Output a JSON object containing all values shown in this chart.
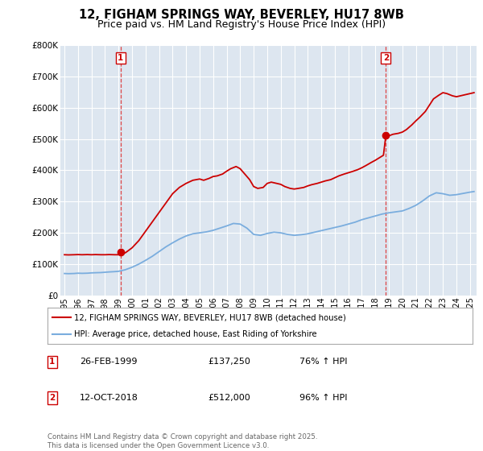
{
  "title": "12, FIGHAM SPRINGS WAY, BEVERLEY, HU17 8WB",
  "subtitle": "Price paid vs. HM Land Registry's House Price Index (HPI)",
  "ylim": [
    0,
    800000
  ],
  "xlim_start": 1994.7,
  "xlim_end": 2025.5,
  "yticks": [
    0,
    100000,
    200000,
    300000,
    400000,
    500000,
    600000,
    700000,
    800000
  ],
  "ytick_labels": [
    "£0",
    "£100K",
    "£200K",
    "£300K",
    "£400K",
    "£500K",
    "£600K",
    "£700K",
    "£800K"
  ],
  "xticks": [
    1995,
    1996,
    1997,
    1998,
    1999,
    2000,
    2001,
    2002,
    2003,
    2004,
    2005,
    2006,
    2007,
    2008,
    2009,
    2010,
    2011,
    2012,
    2013,
    2014,
    2015,
    2016,
    2017,
    2018,
    2019,
    2020,
    2021,
    2022,
    2023,
    2024,
    2025
  ],
  "xtick_labels": [
    "1995",
    "1996",
    "1997",
    "1998",
    "1999",
    "2000",
    "2001",
    "2002",
    "2003",
    "2004",
    "2005",
    "2006",
    "2007",
    "2008",
    "2009",
    "2010",
    "2011",
    "2012",
    "2013",
    "2014",
    "2015",
    "2016",
    "2017",
    "2018",
    "2019",
    "2020",
    "2021",
    "2022",
    "2023",
    "2024",
    "2025"
  ],
  "bg_color": "#dde6f0",
  "grid_color": "#ffffff",
  "red_line_color": "#cc0000",
  "blue_line_color": "#7aadde",
  "marker1_x": 1999.15,
  "marker1_y": 137250,
  "marker2_x": 2018.78,
  "marker2_y": 512000,
  "vline1_x": 1999.15,
  "vline2_x": 2018.78,
  "legend_label_red": "12, FIGHAM SPRINGS WAY, BEVERLEY, HU17 8WB (detached house)",
  "legend_label_blue": "HPI: Average price, detached house, East Riding of Yorkshire",
  "table_rows": [
    {
      "num": "1",
      "date": "26-FEB-1999",
      "price": "£137,250",
      "hpi": "76% ↑ HPI"
    },
    {
      "num": "2",
      "date": "12-OCT-2018",
      "price": "£512,000",
      "hpi": "96% ↑ HPI"
    }
  ],
  "footnote": "Contains HM Land Registry data © Crown copyright and database right 2025.\nThis data is licensed under the Open Government Licence v3.0.",
  "title_fontsize": 10.5,
  "subtitle_fontsize": 9,
  "red_pts": [
    [
      1995.0,
      130000
    ],
    [
      1995.3,
      129500
    ],
    [
      1995.7,
      130000
    ],
    [
      1996.0,
      130500
    ],
    [
      1996.3,
      130000
    ],
    [
      1996.7,
      130500
    ],
    [
      1997.0,
      130000
    ],
    [
      1997.3,
      130500
    ],
    [
      1997.7,
      130000
    ],
    [
      1998.0,
      130000
    ],
    [
      1998.3,
      130500
    ],
    [
      1998.7,
      130000
    ],
    [
      1999.0,
      130000
    ],
    [
      1999.15,
      137250
    ],
    [
      1999.5,
      136000
    ],
    [
      2000.0,
      152000
    ],
    [
      2000.5,
      175000
    ],
    [
      2001.0,
      205000
    ],
    [
      2001.5,
      235000
    ],
    [
      2002.0,
      265000
    ],
    [
      2002.5,
      295000
    ],
    [
      2003.0,
      325000
    ],
    [
      2003.5,
      345000
    ],
    [
      2004.0,
      358000
    ],
    [
      2004.5,
      368000
    ],
    [
      2005.0,
      372000
    ],
    [
      2005.3,
      368000
    ],
    [
      2005.7,
      374000
    ],
    [
      2006.0,
      380000
    ],
    [
      2006.3,
      382000
    ],
    [
      2006.7,
      388000
    ],
    [
      2007.0,
      397000
    ],
    [
      2007.3,
      405000
    ],
    [
      2007.7,
      412000
    ],
    [
      2008.0,
      405000
    ],
    [
      2008.3,
      390000
    ],
    [
      2008.7,
      370000
    ],
    [
      2009.0,
      348000
    ],
    [
      2009.3,
      342000
    ],
    [
      2009.7,
      345000
    ],
    [
      2010.0,
      358000
    ],
    [
      2010.3,
      362000
    ],
    [
      2010.7,
      358000
    ],
    [
      2011.0,
      355000
    ],
    [
      2011.3,
      348000
    ],
    [
      2011.7,
      342000
    ],
    [
      2012.0,
      340000
    ],
    [
      2012.3,
      342000
    ],
    [
      2012.7,
      345000
    ],
    [
      2013.0,
      350000
    ],
    [
      2013.3,
      354000
    ],
    [
      2013.7,
      358000
    ],
    [
      2014.0,
      362000
    ],
    [
      2014.3,
      366000
    ],
    [
      2014.7,
      370000
    ],
    [
      2015.0,
      376000
    ],
    [
      2015.3,
      382000
    ],
    [
      2015.7,
      388000
    ],
    [
      2016.0,
      392000
    ],
    [
      2016.3,
      396000
    ],
    [
      2016.7,
      402000
    ],
    [
      2017.0,
      408000
    ],
    [
      2017.3,
      415000
    ],
    [
      2017.7,
      425000
    ],
    [
      2018.0,
      432000
    ],
    [
      2018.3,
      440000
    ],
    [
      2018.6,
      448000
    ],
    [
      2018.78,
      512000
    ],
    [
      2019.0,
      510000
    ],
    [
      2019.3,
      515000
    ],
    [
      2019.7,
      518000
    ],
    [
      2020.0,
      522000
    ],
    [
      2020.3,
      530000
    ],
    [
      2020.7,
      545000
    ],
    [
      2021.0,
      558000
    ],
    [
      2021.3,
      570000
    ],
    [
      2021.7,
      588000
    ],
    [
      2022.0,
      608000
    ],
    [
      2022.3,
      628000
    ],
    [
      2022.7,
      640000
    ],
    [
      2023.0,
      648000
    ],
    [
      2023.3,
      645000
    ],
    [
      2023.7,
      638000
    ],
    [
      2024.0,
      635000
    ],
    [
      2024.3,
      638000
    ],
    [
      2024.7,
      642000
    ],
    [
      2025.0,
      645000
    ],
    [
      2025.3,
      648000
    ]
  ],
  "blue_pts": [
    [
      1995.0,
      70000
    ],
    [
      1995.3,
      69500
    ],
    [
      1995.7,
      70000
    ],
    [
      1996.0,
      71000
    ],
    [
      1996.3,
      70500
    ],
    [
      1996.7,
      71000
    ],
    [
      1997.0,
      72000
    ],
    [
      1997.3,
      72500
    ],
    [
      1997.7,
      73000
    ],
    [
      1998.0,
      74000
    ],
    [
      1998.3,
      75000
    ],
    [
      1998.7,
      76000
    ],
    [
      1999.0,
      77000
    ],
    [
      1999.5,
      82000
    ],
    [
      2000.0,
      90000
    ],
    [
      2000.5,
      100000
    ],
    [
      2001.0,
      112000
    ],
    [
      2001.5,
      125000
    ],
    [
      2002.0,
      140000
    ],
    [
      2002.5,
      155000
    ],
    [
      2003.0,
      168000
    ],
    [
      2003.5,
      180000
    ],
    [
      2004.0,
      190000
    ],
    [
      2004.5,
      197000
    ],
    [
      2005.0,
      200000
    ],
    [
      2005.5,
      203000
    ],
    [
      2006.0,
      208000
    ],
    [
      2006.5,
      215000
    ],
    [
      2007.0,
      222000
    ],
    [
      2007.5,
      230000
    ],
    [
      2008.0,
      228000
    ],
    [
      2008.5,
      215000
    ],
    [
      2009.0,
      195000
    ],
    [
      2009.5,
      192000
    ],
    [
      2010.0,
      198000
    ],
    [
      2010.5,
      202000
    ],
    [
      2011.0,
      200000
    ],
    [
      2011.5,
      195000
    ],
    [
      2012.0,
      192000
    ],
    [
      2012.5,
      194000
    ],
    [
      2013.0,
      197000
    ],
    [
      2013.5,
      202000
    ],
    [
      2014.0,
      207000
    ],
    [
      2014.5,
      212000
    ],
    [
      2015.0,
      217000
    ],
    [
      2015.5,
      222000
    ],
    [
      2016.0,
      228000
    ],
    [
      2016.5,
      234000
    ],
    [
      2017.0,
      242000
    ],
    [
      2017.5,
      248000
    ],
    [
      2018.0,
      254000
    ],
    [
      2018.5,
      260000
    ],
    [
      2019.0,
      264000
    ],
    [
      2019.5,
      267000
    ],
    [
      2020.0,
      270000
    ],
    [
      2020.5,
      278000
    ],
    [
      2021.0,
      288000
    ],
    [
      2021.5,
      302000
    ],
    [
      2022.0,
      318000
    ],
    [
      2022.5,
      328000
    ],
    [
      2023.0,
      325000
    ],
    [
      2023.5,
      320000
    ],
    [
      2024.0,
      322000
    ],
    [
      2024.5,
      326000
    ],
    [
      2025.0,
      330000
    ],
    [
      2025.3,
      332000
    ]
  ]
}
